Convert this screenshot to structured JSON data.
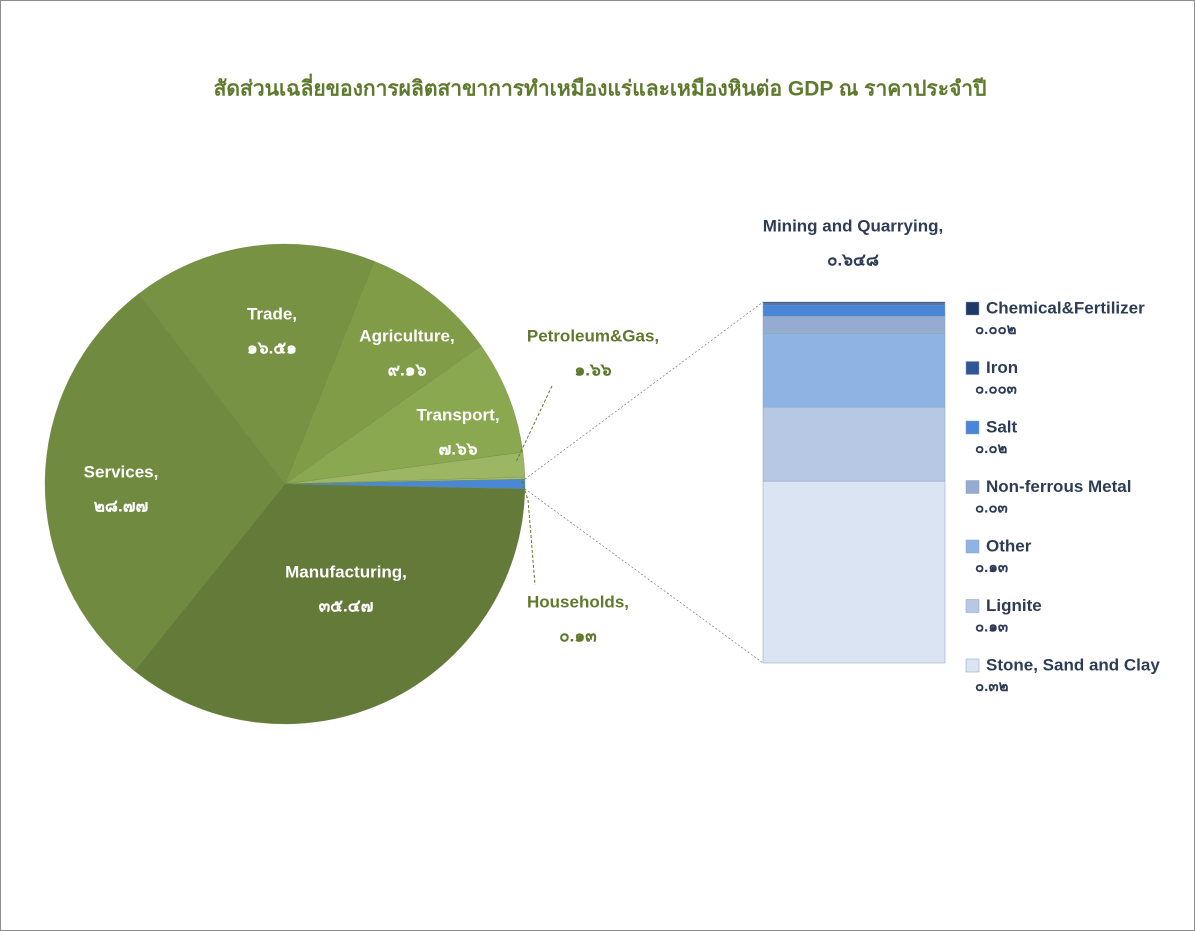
{
  "chart_data": [
    {
      "type": "pie",
      "title": "สัดส่วนเฉลี่ยของการผลิตสาขาการทำเหมืองแร่และเหมืองหินต่อ GDP ณ ราคาประจำปี",
      "categories": [
        "Manufacturing,",
        "Services,",
        "Trade,",
        "Agriculture,",
        "Transport,",
        "Petroleum&Gas,",
        "Households,",
        "Mining and Quarrying,"
      ],
      "values": [
        35.47,
        28.77,
        16.51,
        9.16,
        7.66,
        1.66,
        0.13,
        0.648
      ],
      "value_labels": [
        "๓๕.๔๗",
        "๒๘.๗๗",
        "๑๖.๕๑",
        "๙.๑๖",
        "๗.๖๖",
        "๑.๖๖",
        "๐.๑๓",
        "๐.๖๔๘"
      ],
      "colors": [
        "#647a39",
        "#708b3f",
        "#789243",
        "#809c47",
        "#8aa84f",
        "#9db663",
        "#a9c070",
        "#4a88d4"
      ]
    },
    {
      "type": "bar",
      "stacked": true,
      "series": [
        {
          "name": "Chemical&Fertilizer",
          "color": "#1f3864",
          "values": [
            0.002
          ],
          "value_labels": [
            "๐.๐๐๒"
          ]
        },
        {
          "name": "Iron",
          "color": "#2f5597",
          "values": [
            0.003
          ],
          "value_labels": [
            "๐.๐๐๓"
          ]
        },
        {
          "name": "Salt",
          "color": "#4a86d8",
          "values": [
            0.02
          ],
          "value_labels": [
            "๐.๐๒"
          ]
        },
        {
          "name": "Non-ferrous Metal",
          "color": "#95abd0",
          "values": [
            0.03
          ],
          "value_labels": [
            "๐.๐๓"
          ]
        },
        {
          "name": "Other",
          "color": "#8eb4e3",
          "values": [
            0.13
          ],
          "value_labels": [
            "๐.๑๓"
          ]
        },
        {
          "name": "Lignite",
          "color": "#b7c8e4",
          "values": [
            0.13
          ],
          "value_labels": [
            "๐.๑๓"
          ]
        },
        {
          "name": "Stone, Sand and Clay",
          "color": "#dbe4f2",
          "values": [
            0.32
          ],
          "value_labels": [
            "๐.๓๒"
          ]
        }
      ]
    }
  ]
}
